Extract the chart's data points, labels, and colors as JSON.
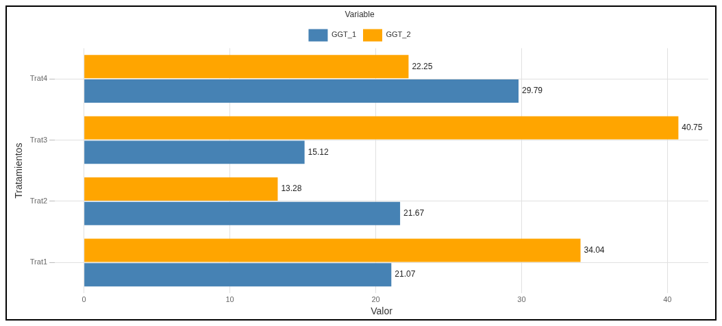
{
  "chart_data": {
    "type": "bar",
    "orientation": "horizontal",
    "xlabel": "Valor",
    "ylabel": "Tratamientos",
    "legend_title": "Variable",
    "legend": "top",
    "grid": true,
    "data_labels": true,
    "categories": [
      "Trat4",
      "Trat3",
      "Trat2",
      "Trat1"
    ],
    "series": [
      {
        "name": "GGT_1",
        "color": "#4682b4",
        "values": [
          29.79,
          15.12,
          21.67,
          21.07
        ]
      },
      {
        "name": "GGT_2",
        "color": "#ffa500",
        "values": [
          22.25,
          40.75,
          13.28,
          34.04
        ]
      }
    ],
    "xlim": [
      -2,
      42.8
    ],
    "xticks": [
      0,
      10,
      20,
      30,
      40
    ]
  }
}
